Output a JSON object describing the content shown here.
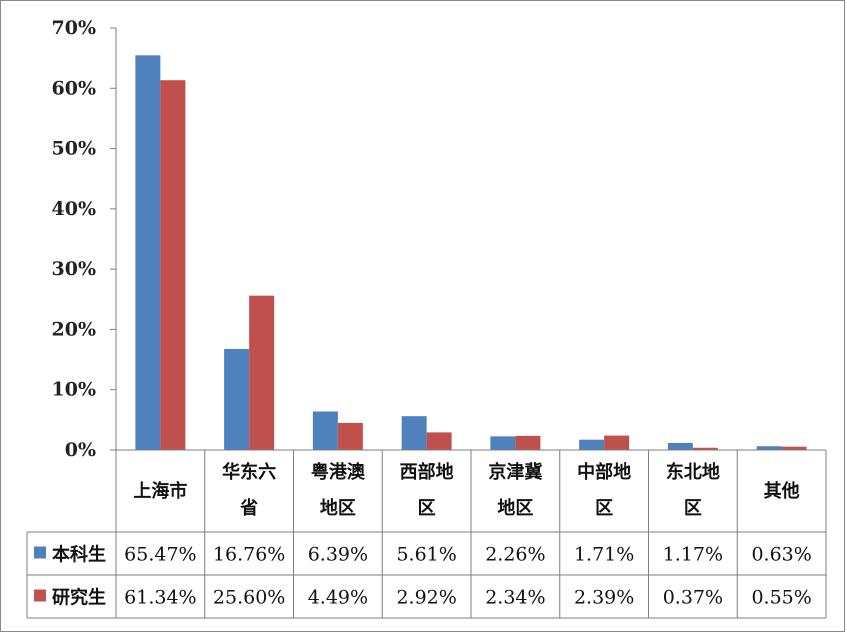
{
  "chart_data": {
    "type": "bar",
    "categories": [
      "上海市",
      "华东六\n省",
      "粤港澳\n地区",
      "西部地\n区",
      "京津冀\n地区",
      "中部地\n区",
      "东北地\n区",
      "其他"
    ],
    "series": [
      {
        "name": "本科生",
        "values": [
          65.47,
          16.76,
          6.39,
          5.61,
          2.26,
          1.71,
          1.17,
          0.63
        ],
        "labels": [
          "65.47%",
          "16.76%",
          "6.39%",
          "5.61%",
          "2.26%",
          "1.71%",
          "1.17%",
          "0.63%"
        ],
        "color": "#4f81bd"
      },
      {
        "name": "研究生",
        "values": [
          61.34,
          25.6,
          4.49,
          2.92,
          2.34,
          2.39,
          0.37,
          0.55
        ],
        "labels": [
          "61.34%",
          "25.60%",
          "4.49%",
          "2.92%",
          "2.34%",
          "2.39%",
          "0.37%",
          "0.55%"
        ],
        "color": "#c0504d"
      }
    ],
    "yticks": [
      "0%",
      "10%",
      "20%",
      "30%",
      "40%",
      "50%",
      "60%",
      "70%"
    ],
    "ylim": [
      0,
      70
    ],
    "grid": false,
    "data_table": true,
    "legend": "in data table"
  }
}
